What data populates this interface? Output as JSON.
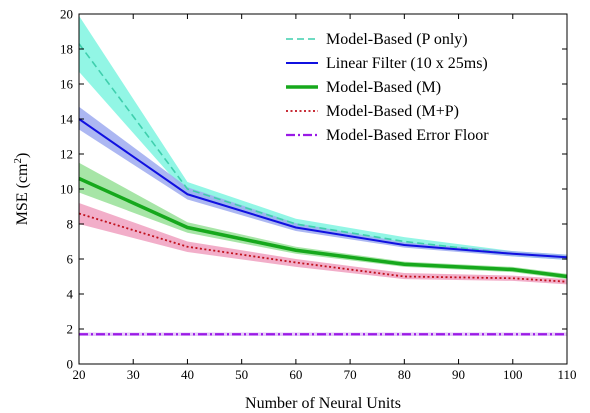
{
  "chart_data": {
    "type": "line",
    "xlabel": "Number of Neural Units",
    "ylabel_base": "MSE (cm",
    "ylabel_sup": "2",
    "ylabel_end": ")",
    "xlim": [
      20,
      110
    ],
    "ylim": [
      0,
      20
    ],
    "xticks": [
      "20",
      "30",
      "40",
      "50",
      "60",
      "70",
      "80",
      "90",
      "100",
      "110"
    ],
    "yticks": [
      "0",
      "2",
      "4",
      "6",
      "8",
      "10",
      "12",
      "14",
      "16",
      "18",
      "20"
    ],
    "x": [
      20,
      40,
      60,
      80,
      100,
      110
    ],
    "grid": false,
    "legend_position": "top-right",
    "series": [
      {
        "name": "Model-Based (P only)",
        "values": [
          18.3,
          10.0,
          8.0,
          7.0,
          6.3,
          6.1
        ],
        "lower": [
          16.7,
          9.7,
          7.8,
          6.8,
          6.15,
          5.95
        ],
        "upper": [
          19.9,
          10.4,
          8.3,
          7.25,
          6.45,
          6.25
        ],
        "color": "#3fcfad",
        "band_color": "#7ff5e0",
        "dash": "dashed",
        "width": 1.6
      },
      {
        "name": "Linear Filter (10 x 25ms)",
        "values": [
          14.0,
          9.7,
          7.8,
          6.8,
          6.3,
          6.1
        ],
        "lower": [
          13.4,
          9.4,
          7.6,
          6.65,
          6.15,
          5.95
        ],
        "upper": [
          14.7,
          10.1,
          8.05,
          6.95,
          6.45,
          6.25
        ],
        "color": "#1010e0",
        "band_color": "#9eaaf0",
        "dash": "solid",
        "width": 2
      },
      {
        "name": "Model-Based (M)",
        "values": [
          10.6,
          7.8,
          6.5,
          5.7,
          5.4,
          5.0
        ],
        "lower": [
          9.8,
          7.5,
          6.3,
          5.55,
          5.25,
          4.85
        ],
        "upper": [
          11.5,
          8.1,
          6.7,
          5.85,
          5.55,
          5.15
        ],
        "color": "#16a81c",
        "band_color": "#98e098",
        "dash": "solid",
        "width": 3.5
      },
      {
        "name": "Model-Based (M+P)",
        "values": [
          8.6,
          6.7,
          5.8,
          5.0,
          4.9,
          4.7
        ],
        "lower": [
          8.0,
          6.4,
          5.55,
          4.85,
          4.75,
          4.55
        ],
        "upper": [
          9.2,
          7.0,
          6.0,
          5.2,
          5.05,
          4.85
        ],
        "color": "#c0101c",
        "band_color": "#f0a0c0",
        "dash": "dotted",
        "width": 1.8
      },
      {
        "name": "Model-Based Error Floor",
        "values": [
          1.7,
          1.7,
          1.7,
          1.7,
          1.7,
          1.7
        ],
        "lower": [
          1.6,
          1.6,
          1.6,
          1.6,
          1.6,
          1.6
        ],
        "upper": [
          1.8,
          1.8,
          1.8,
          1.8,
          1.8,
          1.8
        ],
        "color": "#9a1ae6",
        "band_color": "#e0c0f8",
        "dash": "dashdot",
        "width": 2.2
      }
    ]
  }
}
